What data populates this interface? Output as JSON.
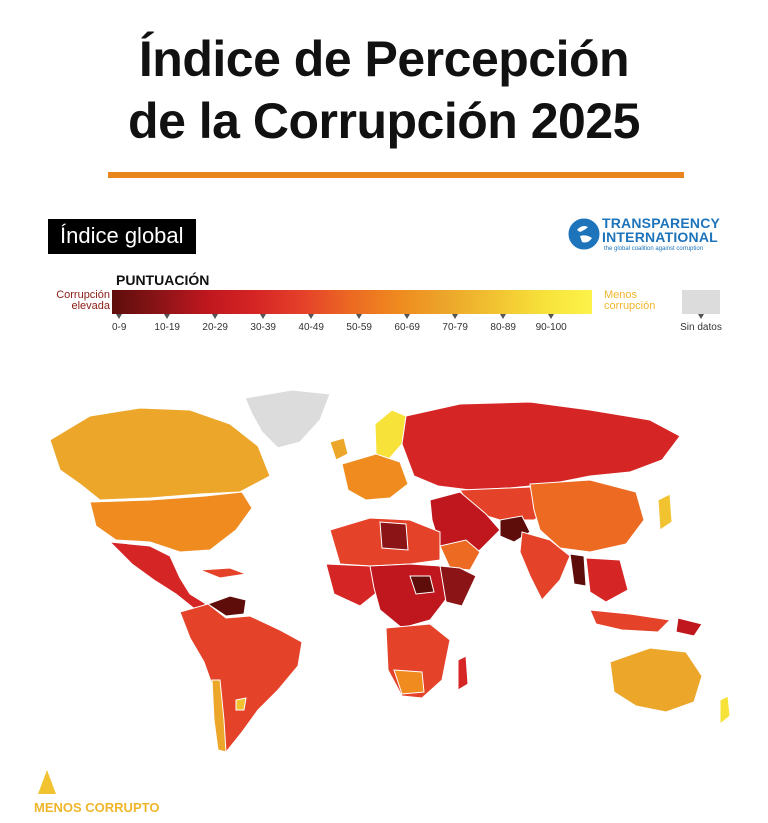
{
  "title_line1": "Índice de Percepción",
  "title_line2": "de la Corrupción 2025",
  "global_label": "Índice global",
  "logo": {
    "line1": "TRANSPARENCY",
    "line2": "INTERNATIONAL",
    "tagline": "the global coalition against corruption",
    "color": "#1e74bb"
  },
  "legend": {
    "heading": "PUNTUACIÓN",
    "left_line1": "Corrupción",
    "left_line2": "elevada",
    "right_line1": "Menos",
    "right_line2": "corrupción",
    "no_data": "Sin datos",
    "ranges": [
      "0-9",
      "10-19",
      "20-29",
      "30-39",
      "40-49",
      "50-59",
      "60-69",
      "70-79",
      "80-89",
      "90-100"
    ],
    "colors": [
      "#5e0d0b",
      "#8b1417",
      "#c0171e",
      "#d62525",
      "#e5422a",
      "#ec6a22",
      "#ef8b1f",
      "#eca72b",
      "#f2c331",
      "#fcf34a"
    ],
    "no_data_color": "#dcdcdc"
  },
  "footer_label": "MENOS CORRUPTO",
  "accent_color": "#e8851c"
}
